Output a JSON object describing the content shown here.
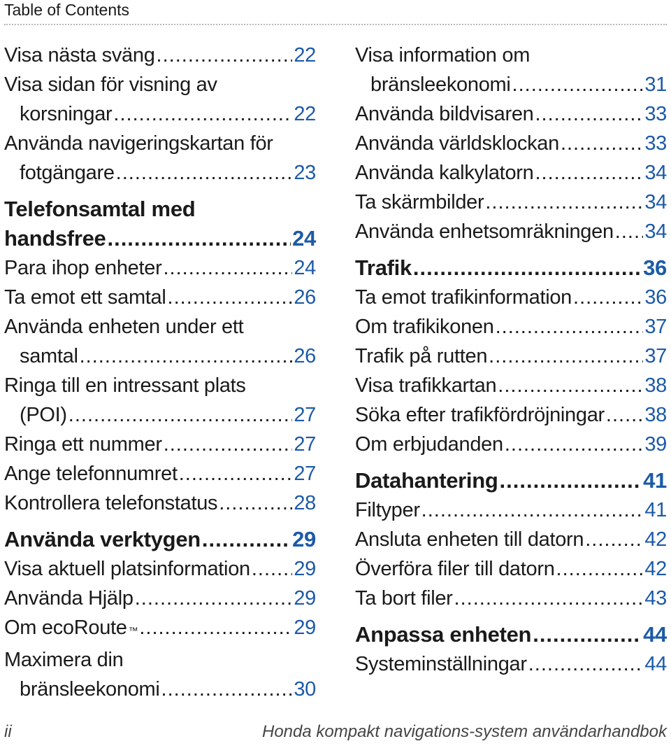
{
  "header": {
    "title": "Table of Contents"
  },
  "colors": {
    "page_number": "#1c5aa8",
    "text": "#1a1a1a"
  },
  "left_column": [
    {
      "lines": [
        "Visa nästa sväng"
      ],
      "page": "22",
      "section": false
    },
    {
      "lines": [
        "Visa sidan för visning av",
        "korsningar"
      ],
      "page": "22",
      "section": false
    },
    {
      "lines": [
        "Använda navigeringskartan för",
        "fotgängare"
      ],
      "page": "23",
      "section": false
    },
    {
      "lines": [
        "Telefonsamtal med",
        "handsfree"
      ],
      "page": "24",
      "section": true
    },
    {
      "lines": [
        "Para ihop enheter"
      ],
      "page": "24",
      "section": false
    },
    {
      "lines": [
        "Ta emot ett samtal"
      ],
      "page": "26",
      "section": false
    },
    {
      "lines": [
        "Använda enheten under ett",
        "samtal"
      ],
      "page": "26",
      "section": false
    },
    {
      "lines": [
        "Ringa till en intressant plats",
        "(POI)"
      ],
      "page": "27",
      "section": false
    },
    {
      "lines": [
        "Ringa ett nummer"
      ],
      "page": "27",
      "section": false
    },
    {
      "lines": [
        "Ange telefonnumret"
      ],
      "page": "27",
      "section": false
    },
    {
      "lines": [
        "Kontrollera telefonstatus"
      ],
      "page": "28",
      "section": false
    },
    {
      "lines": [
        "Använda verktygen"
      ],
      "page": "29",
      "section": true
    },
    {
      "lines": [
        "Visa aktuell platsinformation"
      ],
      "page": "29",
      "section": false
    },
    {
      "lines": [
        "Använda Hjälp"
      ],
      "page": "29",
      "section": false
    },
    {
      "lines": [
        "Om ecoRoute"
      ],
      "page": "29",
      "section": false,
      "tm": "™"
    },
    {
      "lines": [
        "Maximera din",
        "bränsleekonomi"
      ],
      "page": "30",
      "section": false
    }
  ],
  "right_column": [
    {
      "lines": [
        "Visa information om",
        "bränsleekonomi"
      ],
      "page": "31",
      "section": false
    },
    {
      "lines": [
        "Använda bildvisaren"
      ],
      "page": "33",
      "section": false
    },
    {
      "lines": [
        "Använda världsklockan"
      ],
      "page": "33",
      "section": false
    },
    {
      "lines": [
        "Använda kalkylatorn"
      ],
      "page": "34",
      "section": false
    },
    {
      "lines": [
        "Ta skärmbilder"
      ],
      "page": "34",
      "section": false
    },
    {
      "lines": [
        "Använda enhetsomräkningen"
      ],
      "page": "34",
      "section": false
    },
    {
      "lines": [
        "Trafik"
      ],
      "page": "36",
      "section": true
    },
    {
      "lines": [
        "Ta emot trafikinformation"
      ],
      "page": "36",
      "section": false
    },
    {
      "lines": [
        "Om trafikikonen"
      ],
      "page": "37",
      "section": false
    },
    {
      "lines": [
        "Trafik på rutten"
      ],
      "page": "37",
      "section": false
    },
    {
      "lines": [
        "Visa trafikkartan"
      ],
      "page": "38",
      "section": false
    },
    {
      "lines": [
        "Söka efter trafikfördröjningar"
      ],
      "page": "38",
      "section": false
    },
    {
      "lines": [
        "Om erbjudanden"
      ],
      "page": "39",
      "section": false
    },
    {
      "lines": [
        "Datahantering"
      ],
      "page": "41",
      "section": true
    },
    {
      "lines": [
        "Filtyper"
      ],
      "page": "41",
      "section": false
    },
    {
      "lines": [
        "Ansluta enheten till datorn"
      ],
      "page": "42",
      "section": false
    },
    {
      "lines": [
        "Överföra filer till datorn"
      ],
      "page": "42",
      "section": false
    },
    {
      "lines": [
        "Ta bort filer"
      ],
      "page": "43",
      "section": false
    },
    {
      "lines": [
        "Anpassa enheten"
      ],
      "page": "44",
      "section": true
    },
    {
      "lines": [
        "Systeminställningar"
      ],
      "page": "44",
      "section": false
    }
  ],
  "footer": {
    "page_label": "ii",
    "manual_title": "Honda kompakt navigations-system användarhandbok"
  }
}
